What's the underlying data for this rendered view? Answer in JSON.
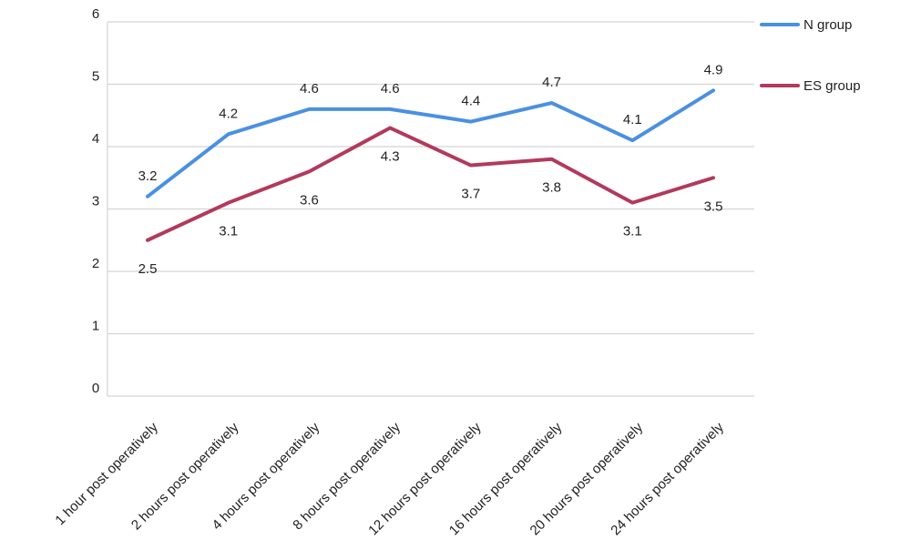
{
  "chart_data": {
    "type": "line",
    "title": "",
    "xlabel": "",
    "ylabel": "",
    "ylim": [
      0,
      6
    ],
    "yticks": [
      "0",
      "1",
      "2",
      "3",
      "4",
      "5",
      "6"
    ],
    "grid": true,
    "legend_position": "top-right",
    "categories": [
      "1 hour post operatively",
      "2 hours post operatively",
      "4 hours post operatively",
      "8 hours post operatively",
      "12 hours post operatively",
      "16 hours post operatively",
      "20 hours post operatively",
      "24 hours post operatively"
    ],
    "series": [
      {
        "name": "N group",
        "color": "#4a90e2",
        "values": [
          3.2,
          4.2,
          4.6,
          4.6,
          4.4,
          4.7,
          4.1,
          4.9
        ],
        "labels": [
          "3.2",
          "4.2",
          "4.6",
          "4.6",
          "4.4",
          "4.7",
          "4.1",
          "4.9"
        ]
      },
      {
        "name": "ES group",
        "color": "#b23a5c",
        "values": [
          2.5,
          3.1,
          3.6,
          4.3,
          3.7,
          3.8,
          3.1,
          3.5
        ],
        "labels": [
          "2.5",
          "3.1",
          "3.6",
          "4.3",
          "3.7",
          "3.8",
          "3.1",
          "3.5"
        ]
      }
    ]
  }
}
